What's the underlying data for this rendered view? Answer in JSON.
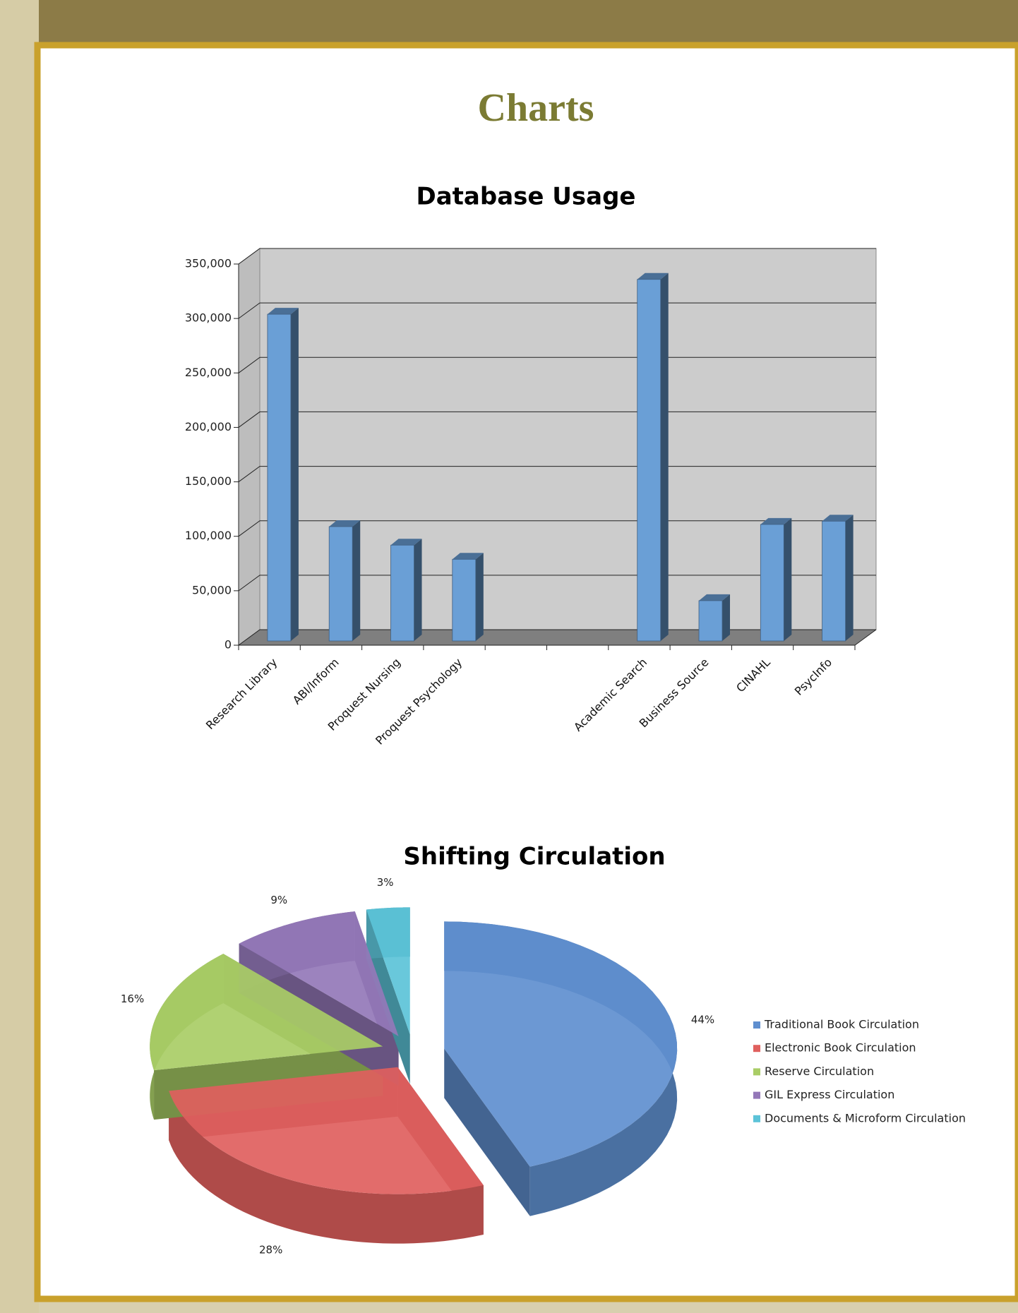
{
  "page_title": "Charts",
  "chart_data": [
    {
      "type": "bar",
      "title": "Database Usage",
      "categories": [
        "Research Library",
        "ABI/Inform",
        "Proquest Nursing",
        "Proquest Psychology",
        null,
        null,
        "Academic Search",
        "Business Source",
        "CINAHL",
        "PsycInfo"
      ],
      "values": [
        300000,
        105000,
        88000,
        75000,
        null,
        null,
        332000,
        37000,
        107000,
        110000
      ],
      "color": "#6a9fd6",
      "ylim": [
        0,
        350000
      ],
      "yticks": [
        0,
        {
          "value": 50000,
          "label": "50,000"
        },
        {
          "value": 100000,
          "label": "100,000"
        },
        {
          "value": 150000,
          "label": "150,000"
        },
        {
          "value": 200000,
          "label": "200,000"
        },
        {
          "value": 250000,
          "label": "250,000"
        },
        {
          "value": 300000,
          "label": "300,000"
        },
        {
          "value": 350000,
          "label": "350,000"
        }
      ],
      "grid": true
    },
    {
      "type": "pie",
      "title": "Shifting Circulation",
      "categories": [
        "Traditional Book Circulation",
        "Electronic Book Circulation",
        "Reserve Circulation",
        "GIL Express Circulation",
        "Documents  & Microform Circulation"
      ],
      "values": [
        44,
        28,
        16,
        9,
        3
      ],
      "value_labels": [
        "44%",
        "28%",
        "16%",
        "9%",
        "3%"
      ],
      "colors": [
        "#5f8fcf",
        "#e0605e",
        "#a9cd66",
        "#9478b8",
        "#5cc3d8"
      ],
      "legend": "right"
    }
  ]
}
